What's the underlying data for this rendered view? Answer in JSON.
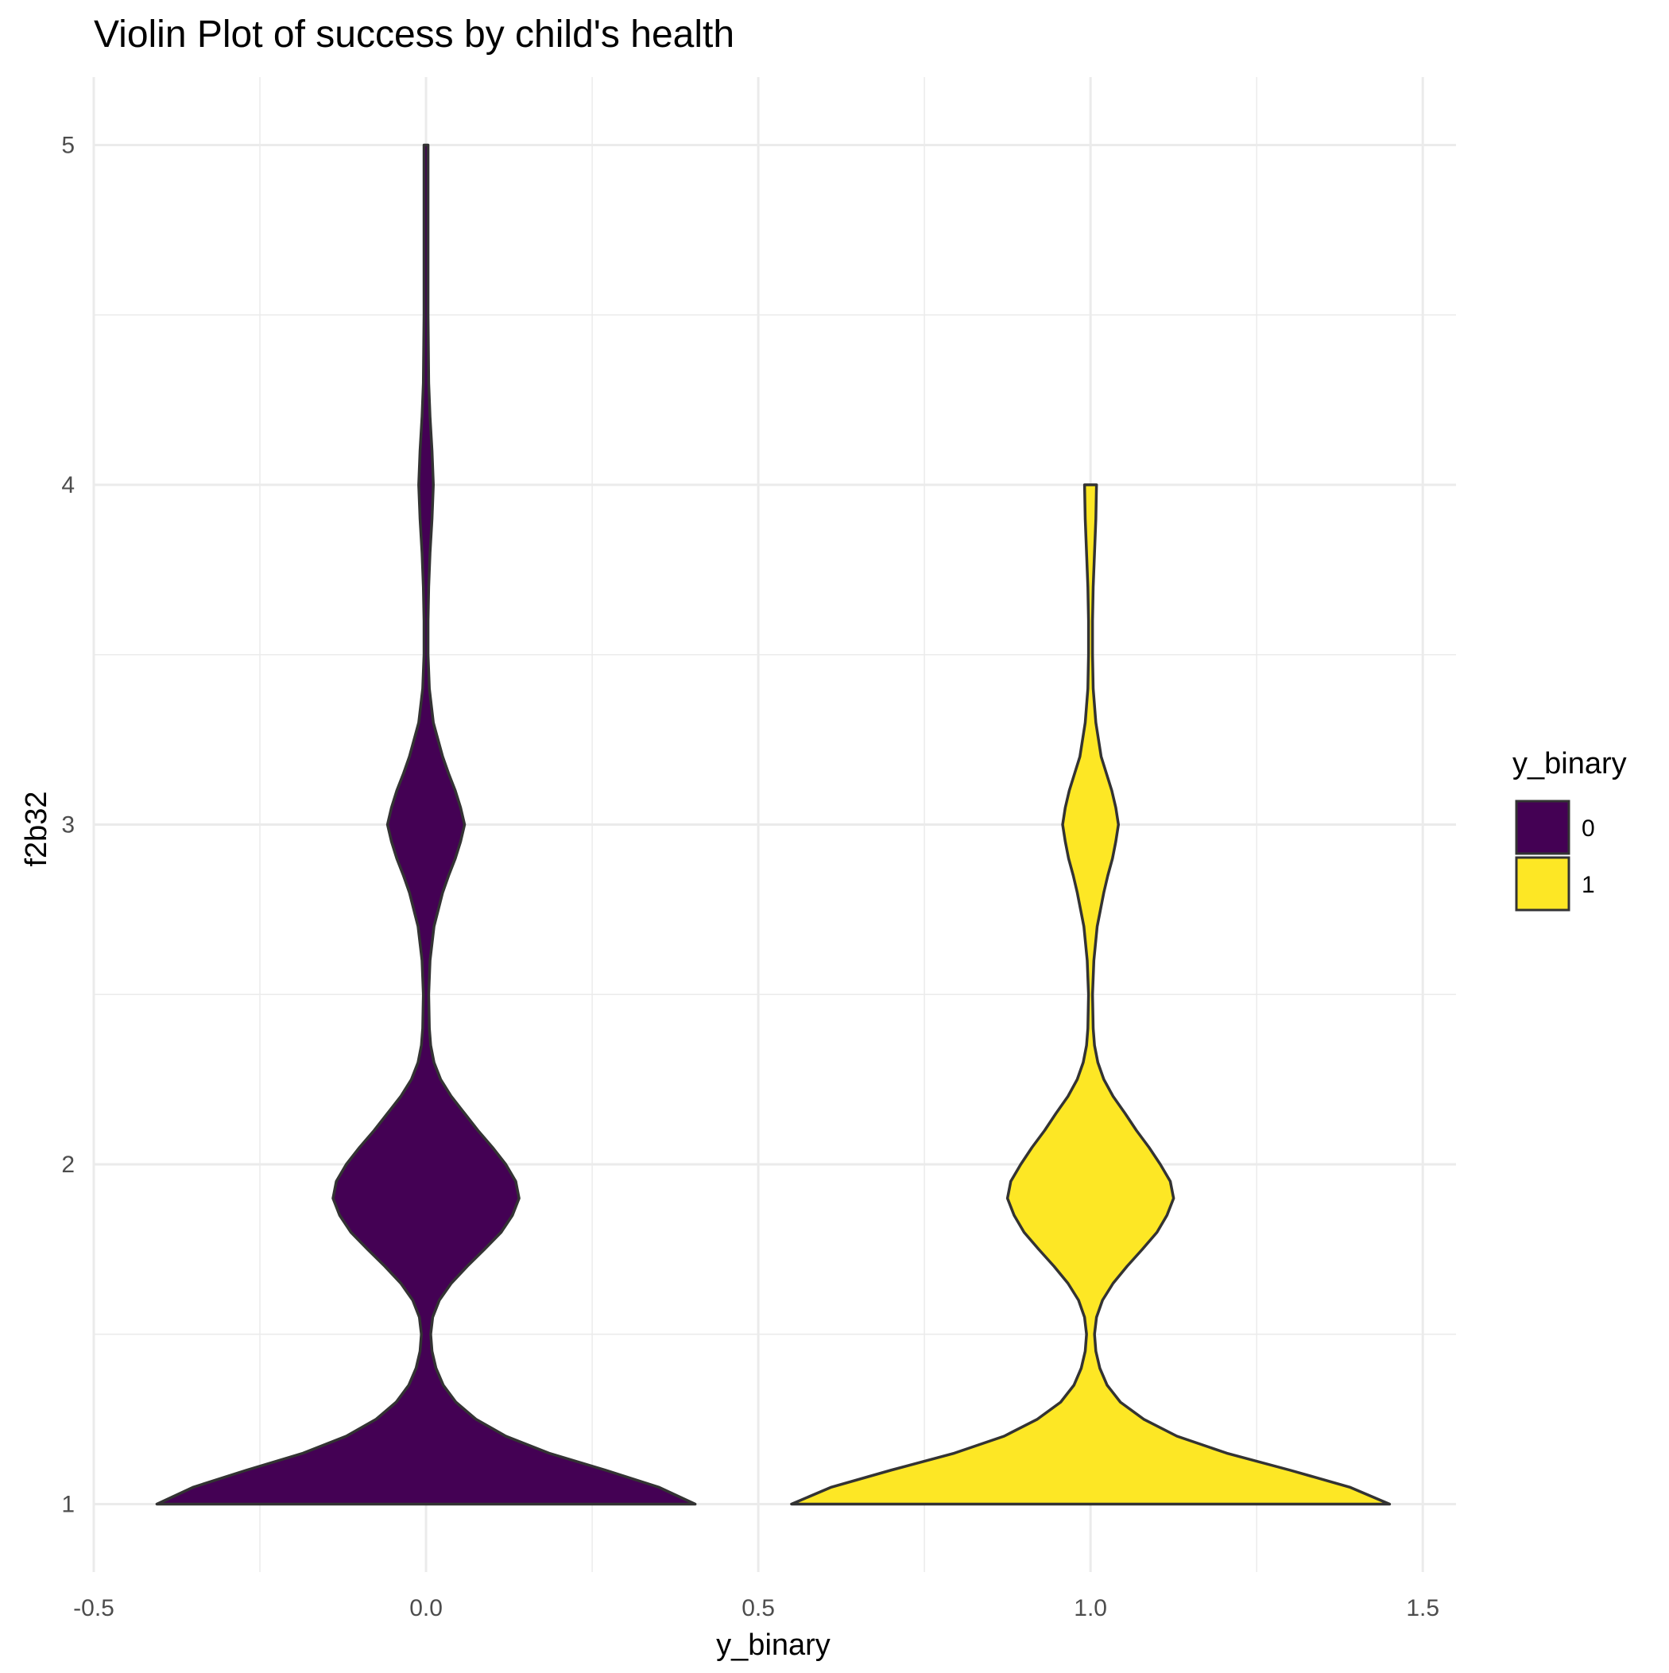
{
  "chart_data": {
    "type": "violin",
    "title": "Violin Plot of success by child's health",
    "xlabel": "y_binary",
    "ylabel": "f2b32",
    "xlim": [
      -0.5,
      1.55
    ],
    "ylim": [
      0.8,
      5.2
    ],
    "x_ticks": [
      -0.5,
      0.0,
      0.5,
      1.0,
      1.5
    ],
    "x_tick_labels": [
      "-0.5",
      "0.0",
      "0.5",
      "1.0",
      "1.5"
    ],
    "y_ticks": [
      1,
      2,
      3,
      4,
      5
    ],
    "y_tick_labels": [
      "1",
      "2",
      "3",
      "4",
      "5"
    ],
    "grid": true,
    "legend": {
      "title": "y_binary",
      "position": "right",
      "entries": [
        {
          "label": "0",
          "color": "#440154"
        },
        {
          "label": "1",
          "color": "#FDE725"
        }
      ]
    },
    "series": [
      {
        "name": "0",
        "x": 0.0,
        "color": "#440154",
        "y_range": [
          1,
          5
        ],
        "density_profile": {
          "y": [
            1.0,
            1.05,
            1.1,
            1.15,
            1.2,
            1.25,
            1.3,
            1.35,
            1.4,
            1.45,
            1.5,
            1.55,
            1.6,
            1.65,
            1.7,
            1.75,
            1.8,
            1.85,
            1.9,
            1.95,
            2.0,
            2.05,
            2.1,
            2.15,
            2.2,
            2.25,
            2.3,
            2.35,
            2.4,
            2.5,
            2.6,
            2.7,
            2.8,
            2.85,
            2.9,
            2.95,
            3.0,
            3.05,
            3.1,
            3.15,
            3.2,
            3.3,
            3.4,
            3.5,
            3.6,
            3.7,
            3.8,
            3.9,
            4.0,
            4.1,
            4.2,
            4.3,
            4.5,
            4.7,
            5.0
          ],
          "half_width": [
            0.405,
            0.35,
            0.27,
            0.185,
            0.12,
            0.075,
            0.045,
            0.026,
            0.015,
            0.009,
            0.007,
            0.01,
            0.02,
            0.038,
            0.062,
            0.088,
            0.113,
            0.13,
            0.14,
            0.135,
            0.12,
            0.1,
            0.078,
            0.058,
            0.038,
            0.022,
            0.012,
            0.007,
            0.005,
            0.004,
            0.006,
            0.012,
            0.025,
            0.034,
            0.044,
            0.052,
            0.058,
            0.052,
            0.044,
            0.034,
            0.025,
            0.011,
            0.005,
            0.003,
            0.003,
            0.004,
            0.006,
            0.009,
            0.011,
            0.009,
            0.006,
            0.004,
            0.003,
            0.003,
            0.003
          ]
        }
      },
      {
        "name": "1",
        "x": 1.0,
        "color": "#FDE725",
        "y_range": [
          1,
          4
        ],
        "density_profile": {
          "y": [
            1.0,
            1.05,
            1.1,
            1.15,
            1.2,
            1.25,
            1.3,
            1.35,
            1.4,
            1.45,
            1.5,
            1.55,
            1.6,
            1.65,
            1.7,
            1.75,
            1.8,
            1.85,
            1.9,
            1.95,
            2.0,
            2.05,
            2.1,
            2.15,
            2.2,
            2.25,
            2.3,
            2.35,
            2.4,
            2.5,
            2.6,
            2.7,
            2.8,
            2.85,
            2.9,
            2.95,
            3.0,
            3.05,
            3.1,
            3.15,
            3.2,
            3.3,
            3.4,
            3.5,
            3.6,
            3.7,
            3.8,
            3.9,
            4.0
          ],
          "half_width": [
            0.45,
            0.39,
            0.3,
            0.205,
            0.13,
            0.08,
            0.045,
            0.025,
            0.014,
            0.008,
            0.006,
            0.009,
            0.018,
            0.034,
            0.055,
            0.078,
            0.1,
            0.115,
            0.125,
            0.12,
            0.105,
            0.088,
            0.069,
            0.052,
            0.034,
            0.02,
            0.011,
            0.006,
            0.004,
            0.003,
            0.005,
            0.01,
            0.02,
            0.026,
            0.033,
            0.038,
            0.042,
            0.038,
            0.032,
            0.024,
            0.016,
            0.008,
            0.004,
            0.003,
            0.003,
            0.004,
            0.006,
            0.008,
            0.009
          ]
        }
      }
    ]
  }
}
